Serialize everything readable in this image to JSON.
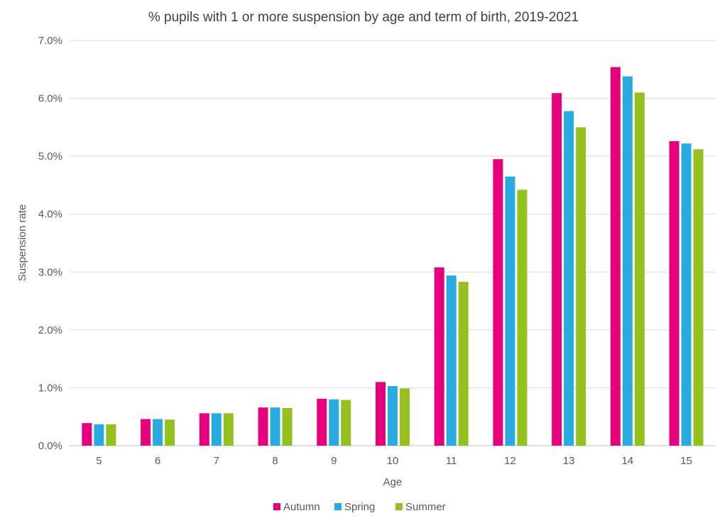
{
  "chart_data": {
    "type": "bar",
    "title": "% pupils with 1 or more suspension by age and term of birth, 2019-2021",
    "xlabel": "Age",
    "ylabel": "Suspension rate",
    "categories": [
      "5",
      "6",
      "7",
      "8",
      "9",
      "10",
      "11",
      "12",
      "13",
      "14",
      "15"
    ],
    "ylim": [
      0,
      7.0
    ],
    "yticks": [
      "0.0%",
      "1.0%",
      "2.0%",
      "3.0%",
      "4.0%",
      "5.0%",
      "6.0%",
      "7.0%"
    ],
    "grid": true,
    "legend_position": "bottom",
    "series": [
      {
        "name": "Autumn",
        "color": "#e6007e",
        "values": [
          0.39,
          0.46,
          0.56,
          0.66,
          0.81,
          1.1,
          3.08,
          4.95,
          6.09,
          6.54,
          5.26
        ]
      },
      {
        "name": "Spring",
        "color": "#29abe2",
        "values": [
          0.37,
          0.46,
          0.56,
          0.66,
          0.8,
          1.03,
          2.94,
          4.65,
          5.78,
          6.38,
          5.22
        ]
      },
      {
        "name": "Summer",
        "color": "#95c11f",
        "values": [
          0.37,
          0.45,
          0.56,
          0.65,
          0.79,
          0.99,
          2.83,
          4.42,
          5.5,
          6.1,
          5.12
        ]
      }
    ]
  }
}
